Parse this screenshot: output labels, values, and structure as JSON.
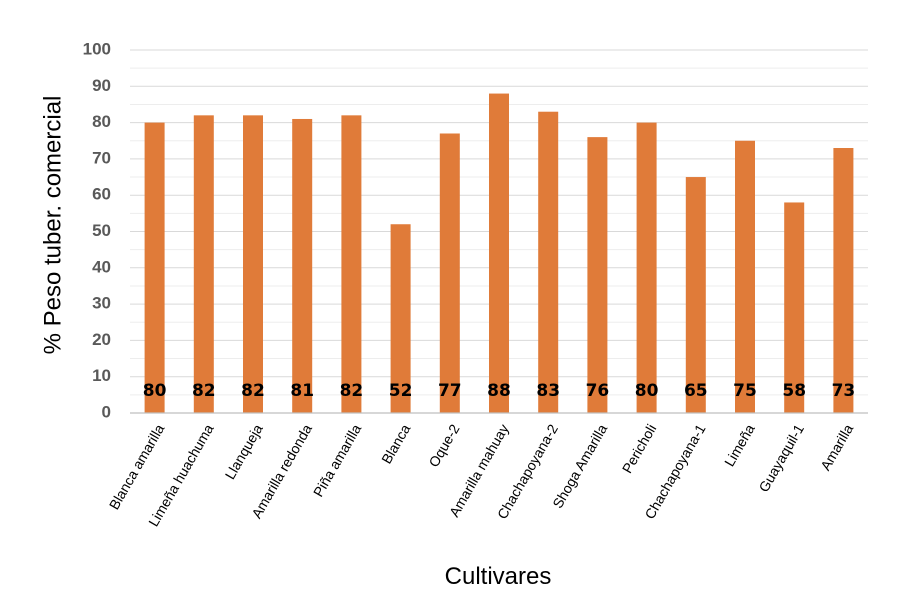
{
  "chart_data": {
    "type": "bar",
    "title": "",
    "xlabel": "Cultivares",
    "ylabel": "% Peso tuber. comercial",
    "ylim": [
      0,
      100
    ],
    "yticks": [
      0,
      10,
      20,
      30,
      40,
      50,
      60,
      70,
      80,
      90,
      100
    ],
    "grid": true,
    "legend": "none",
    "categories": [
      "Blanca amarilla",
      "Limeña huachuma",
      "Llanqueja",
      "Amarilla redonda",
      "Piña amarilla",
      "Blanca",
      "Oque-2",
      "Amarilla mahuay",
      "Chachapoyana-2",
      "Shoga Amarilla",
      "Pericholi",
      "Chachapoyana-1",
      "Limeña",
      "Guayaquil-1",
      "Amarilla"
    ],
    "values": [
      80,
      82,
      82,
      81,
      82,
      52,
      77,
      88,
      83,
      76,
      80,
      65,
      75,
      58,
      73
    ],
    "data_labels": [
      "80",
      "82",
      "82",
      "81",
      "82",
      "52",
      "77",
      "88",
      "83",
      "76",
      "80",
      "65",
      "75",
      "58",
      "73"
    ],
    "colors": {
      "bar": "#E07B39",
      "grid_major": "#D9D9D9",
      "grid_minor": "#EDEDED",
      "axis": "#BFBFBF"
    }
  }
}
